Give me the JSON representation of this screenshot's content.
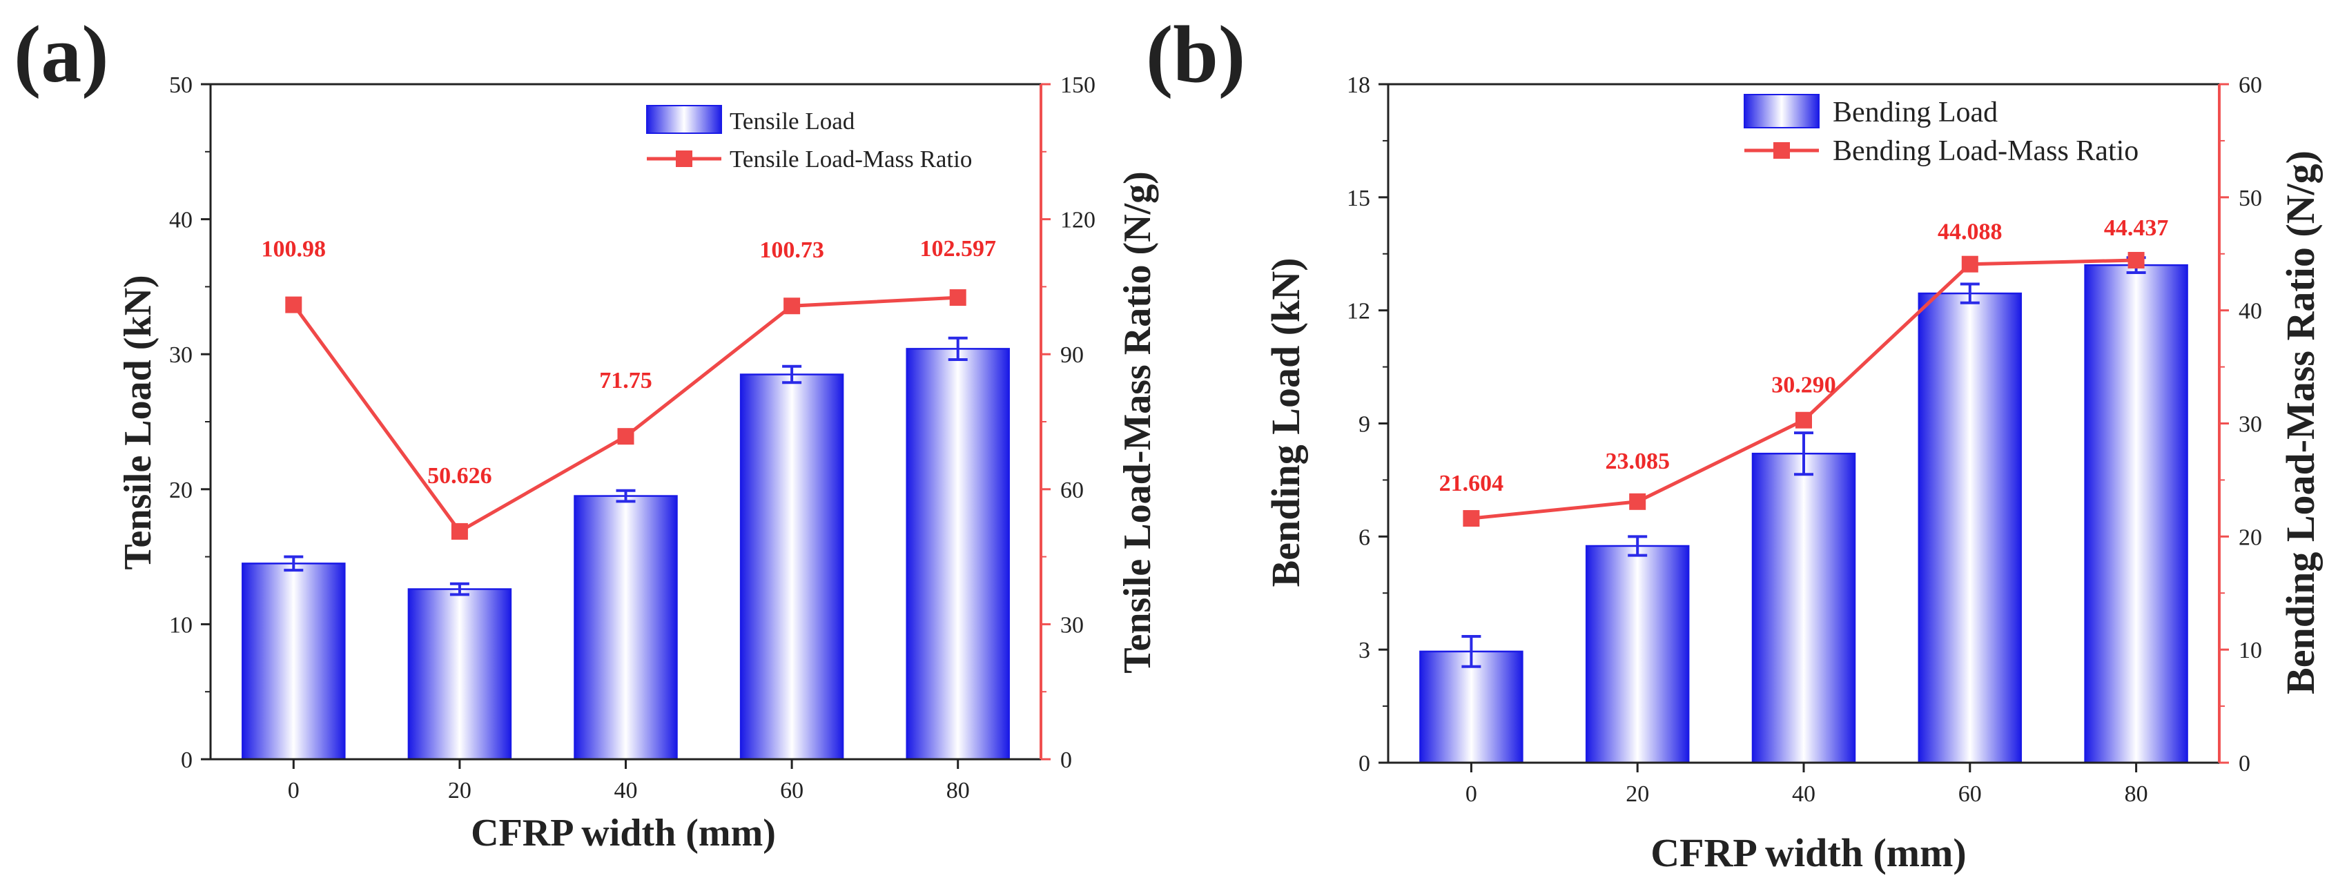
{
  "chart_data": [
    {
      "type": "bar+line",
      "panel_label": "(a)",
      "categories": [
        "0",
        "20",
        "40",
        "60",
        "80"
      ],
      "xlabel": "CFRP width (mm)",
      "ylabel": "Tensile Load (kN)",
      "ylabel_right": "Tensile Load-Mass Ratio (N/g)",
      "ylim": [
        0,
        50
      ],
      "ylim_right": [
        0,
        150
      ],
      "yticks": [
        0,
        10,
        20,
        30,
        40,
        50
      ],
      "yticks_right": [
        0,
        30,
        60,
        90,
        120,
        150
      ],
      "legend_position": "top-right",
      "series": [
        {
          "name": "Tensile Load",
          "kind": "bar",
          "axis": "left",
          "values": [
            14.5,
            12.6,
            19.5,
            28.5,
            30.4
          ],
          "errors": [
            0.5,
            0.4,
            0.4,
            0.6,
            0.8
          ]
        },
        {
          "name": "Tensile Load-Mass Ratio",
          "kind": "line",
          "axis": "right",
          "values": [
            100.98,
            50.626,
            71.75,
            100.73,
            102.597
          ],
          "labels": [
            "100.98",
            "50.626",
            "71.75",
            "100.73",
            "102.597"
          ]
        }
      ]
    },
    {
      "type": "bar+line",
      "panel_label": "(b)",
      "categories": [
        "0",
        "20",
        "40",
        "60",
        "80"
      ],
      "xlabel": "CFRP width (mm)",
      "ylabel": "Bending Load (kN)",
      "ylabel_right": "Bending Load-Mass Ratio (N/g)",
      "ylim": [
        0,
        18
      ],
      "ylim_right": [
        0,
        60
      ],
      "yticks": [
        0,
        3,
        6,
        9,
        12,
        15,
        18
      ],
      "yticks_right": [
        0,
        10,
        20,
        30,
        40,
        50,
        60
      ],
      "legend_position": "top-right",
      "series": [
        {
          "name": "Bending Load",
          "kind": "bar",
          "axis": "left",
          "values": [
            2.95,
            5.75,
            8.2,
            12.45,
            13.2
          ],
          "errors": [
            0.4,
            0.25,
            0.55,
            0.25,
            0.2
          ]
        },
        {
          "name": "Bending Load-Mass Ratio",
          "kind": "line",
          "axis": "right",
          "values": [
            21.604,
            23.085,
            30.29,
            44.088,
            44.437
          ],
          "labels": [
            "21.604",
            "23.085",
            "30.290",
            "44.088",
            "44.437"
          ]
        }
      ]
    }
  ],
  "colors": {
    "bar_edge": "#1a1ae6",
    "bar_center": "#ffffff",
    "bar_dark": "#2a2ae8",
    "line": "#f04848",
    "label": "#ee2a2a",
    "right_axis": "#f05050",
    "axis": "#222222",
    "text": "#222222"
  }
}
